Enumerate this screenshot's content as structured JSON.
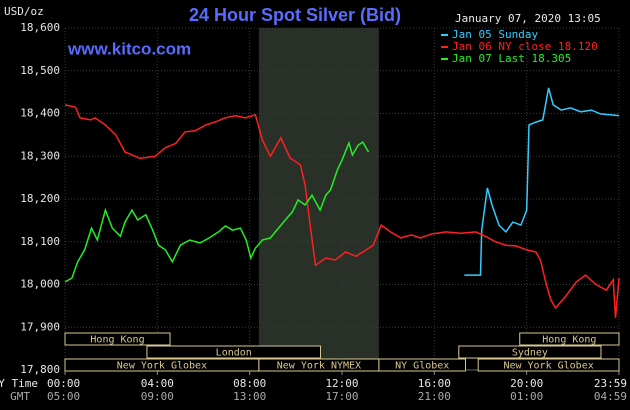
{
  "chart_data": {
    "type": "line",
    "title": "24 Hour Spot Silver (Bid)",
    "date": "January 07, 2020 13:05",
    "site": "www.kitco.com",
    "y_label": "USD/oz",
    "x_row_labels": [
      "NY Time",
      "GMT"
    ],
    "xlim": [
      0,
      24
    ],
    "xticks": [
      {
        "value": 0,
        "label": "00:00"
      },
      {
        "value": 4,
        "label": "04:00"
      },
      {
        "value": 8,
        "label": "08:00"
      },
      {
        "value": 12,
        "label": "12:00"
      },
      {
        "value": 16,
        "label": "16:00"
      },
      {
        "value": 20,
        "label": "20:00"
      },
      {
        "value": 24,
        "label": "23:59"
      }
    ],
    "gmt_labels": [
      "05:00",
      "09:00",
      "13:00",
      "17:00",
      "21:00",
      "01:00",
      "04:59"
    ],
    "ylim": [
      17.8,
      18.6
    ],
    "yticks": [
      {
        "value": 17.8,
        "label": "17,800"
      },
      {
        "value": 17.9,
        "label": "17,900"
      },
      {
        "value": 18.0,
        "label": "18,000"
      },
      {
        "value": 18.1,
        "label": "18,100"
      },
      {
        "value": 18.2,
        "label": "18,200"
      },
      {
        "value": 18.3,
        "label": "18,300"
      },
      {
        "value": 18.4,
        "label": "18,400"
      },
      {
        "value": 18.5,
        "label": "18,500"
      },
      {
        "value": 18.6,
        "label": "18,600"
      }
    ],
    "grid": true,
    "series": [
      {
        "name": "Jan 05 Sunday",
        "color": "#33ccff",
        "x": [
          17.3,
          18.0,
          18.05,
          18.3,
          18.5,
          18.8,
          19.1,
          19.4,
          19.75,
          20.0,
          20.1,
          20.4,
          20.7,
          20.95,
          21.15,
          21.5,
          21.9,
          22.35,
          22.8,
          23.2,
          23.6,
          24
        ],
        "values": [
          18.022,
          18.022,
          18.127,
          18.226,
          18.186,
          18.139,
          18.123,
          18.146,
          18.139,
          18.174,
          18.373,
          18.38,
          18.385,
          18.46,
          18.42,
          18.408,
          18.413,
          18.404,
          18.408,
          18.399,
          18.397,
          18.395
        ]
      },
      {
        "name": "Jan 06 NY close 18.120",
        "color": "#ff2020",
        "x": [
          0,
          0.45,
          0.65,
          1.1,
          1.3,
          1.75,
          2.2,
          2.6,
          3.25,
          3.9,
          4.35,
          4.8,
          5.2,
          5.65,
          6.1,
          6.5,
          6.95,
          7.4,
          7.8,
          8.25,
          8.55,
          8.9,
          9.35,
          9.75,
          10.2,
          10.4,
          10.65,
          10.85,
          11.3,
          11.7,
          12.15,
          12.6,
          13.05,
          13.35,
          13.7,
          14.1,
          14.55,
          15.0,
          15.4,
          15.85,
          16.5,
          17.15,
          17.8,
          18.2,
          18.65,
          19.1,
          19.55,
          20.0,
          20.4,
          20.6,
          20.85,
          21.05,
          21.25,
          21.7,
          22.15,
          22.55,
          23.0,
          23.45,
          23.75,
          23.85,
          24
        ],
        "values": [
          18.42,
          18.415,
          18.39,
          18.385,
          18.39,
          18.373,
          18.35,
          18.31,
          18.295,
          18.3,
          18.32,
          18.33,
          18.357,
          18.36,
          18.373,
          18.38,
          18.39,
          18.395,
          18.39,
          18.397,
          18.338,
          18.3,
          18.343,
          18.296,
          18.28,
          18.233,
          18.127,
          18.045,
          18.062,
          18.057,
          18.076,
          18.066,
          18.081,
          18.092,
          18.139,
          18.123,
          18.109,
          18.116,
          18.109,
          18.118,
          18.123,
          18.12,
          18.123,
          18.113,
          18.1,
          18.092,
          18.09,
          18.081,
          18.076,
          18.057,
          18.0,
          17.964,
          17.945,
          17.973,
          18.006,
          18.022,
          18.0,
          17.987,
          18.011,
          17.922,
          18.015
        ]
      },
      {
        "name": "Jan 07 Last 18.305",
        "color": "#22ee22",
        "x": [
          0,
          0.3,
          0.55,
          0.85,
          1.15,
          1.4,
          1.75,
          2.05,
          2.4,
          2.6,
          2.9,
          3.15,
          3.5,
          3.8,
          4.05,
          4.35,
          4.65,
          5.0,
          5.4,
          5.85,
          6.25,
          6.65,
          6.95,
          7.25,
          7.6,
          7.85,
          8.05,
          8.25,
          8.55,
          8.9,
          9.25,
          9.55,
          9.85,
          10.1,
          10.4,
          10.7,
          11.05,
          11.3,
          11.5,
          11.8,
          12.0,
          12.3,
          12.45,
          12.7,
          12.9,
          13.15
        ],
        "values": [
          18.006,
          18.015,
          18.053,
          18.081,
          18.132,
          18.104,
          18.174,
          18.132,
          18.113,
          18.146,
          18.174,
          18.151,
          18.163,
          18.127,
          18.092,
          18.081,
          18.053,
          18.092,
          18.104,
          18.097,
          18.109,
          18.123,
          18.137,
          18.127,
          18.132,
          18.104,
          18.062,
          18.085,
          18.104,
          18.109,
          18.132,
          18.151,
          18.17,
          18.198,
          18.186,
          18.209,
          18.174,
          18.209,
          18.221,
          18.268,
          18.291,
          18.331,
          18.303,
          18.326,
          18.333,
          18.31
        ]
      }
    ],
    "session_rows": [
      [
        {
          "label": "Hong Kong",
          "start": 0,
          "end": 4.55
        },
        {
          "label": "Hong Kong",
          "start": 19.7,
          "end": 24
        }
      ],
      [
        {
          "label": "London",
          "start": 3.55,
          "end": 11.07
        },
        {
          "label": "Sydney",
          "start": 17.06,
          "end": 23.22
        }
      ],
      [
        {
          "label": "New York Globex",
          "start": 0,
          "end": 8.4
        },
        {
          "label": "New York NYMEX",
          "start": 8.4,
          "end": 13.6
        },
        {
          "label": "NY Globex",
          "start": 13.6,
          "end": 17.35
        },
        {
          "label": "New York Globex",
          "start": 17.9,
          "end": 24
        }
      ]
    ]
  }
}
